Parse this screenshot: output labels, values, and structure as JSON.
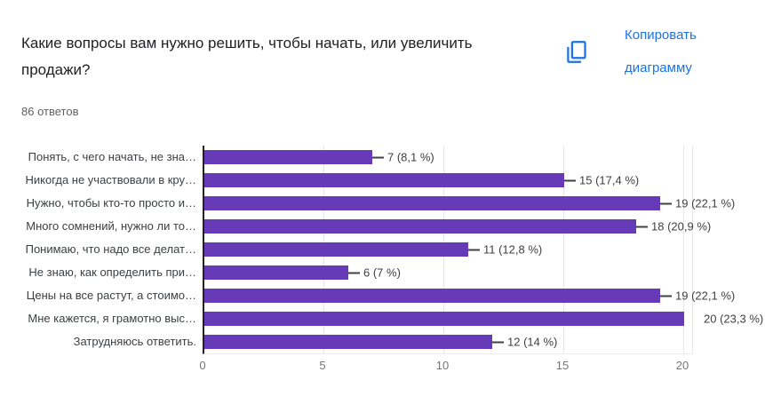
{
  "header": {
    "title": "Какие вопросы вам нужно решить, чтобы начать, или увеличить продажи?",
    "answers_count": "86 ответов",
    "copy_button_label": "Копировать диаграмму"
  },
  "colors": {
    "bar": "#673ab7",
    "link_blue": "#1a73e8",
    "axis": "#212121",
    "gridline": "#e6e6e6"
  },
  "chart_data": {
    "type": "bar",
    "orientation": "horizontal",
    "title": "Какие вопросы вам нужно решить, чтобы начать, или увеличить продажи?",
    "subtitle": "86 ответов",
    "categories": [
      "Понять, с чего начать, не зна…",
      "Никогда не участвовали в кру…",
      "Нужно, чтобы кто-то просто и…",
      "Много сомнений, нужно ли то…",
      "Понимаю, что надо все делат…",
      "Не знаю, как определить при…",
      "Цены на все растут, а стоимо…",
      "Мне кажется, я грамотно выс…",
      "Затрудняюсь ответить."
    ],
    "values": [
      7,
      15,
      19,
      18,
      11,
      6,
      19,
      20,
      12
    ],
    "value_labels": [
      "7 (8,1 %)",
      "15 (17,4 %)",
      "19 (22,1 %)",
      "18 (20,9 %)",
      "11 (12,8 %)",
      "6 (7 %)",
      "19 (22,1 %)",
      "20 (23,3 %)",
      "12 (14 %)"
    ],
    "xlabel": "",
    "ylabel": "",
    "xlim": [
      0,
      20.4
    ],
    "xticks": [
      0,
      5,
      10,
      15,
      20
    ],
    "grid": true,
    "legend": "none",
    "bar_color": "#673ab7",
    "total_responses": 86
  }
}
